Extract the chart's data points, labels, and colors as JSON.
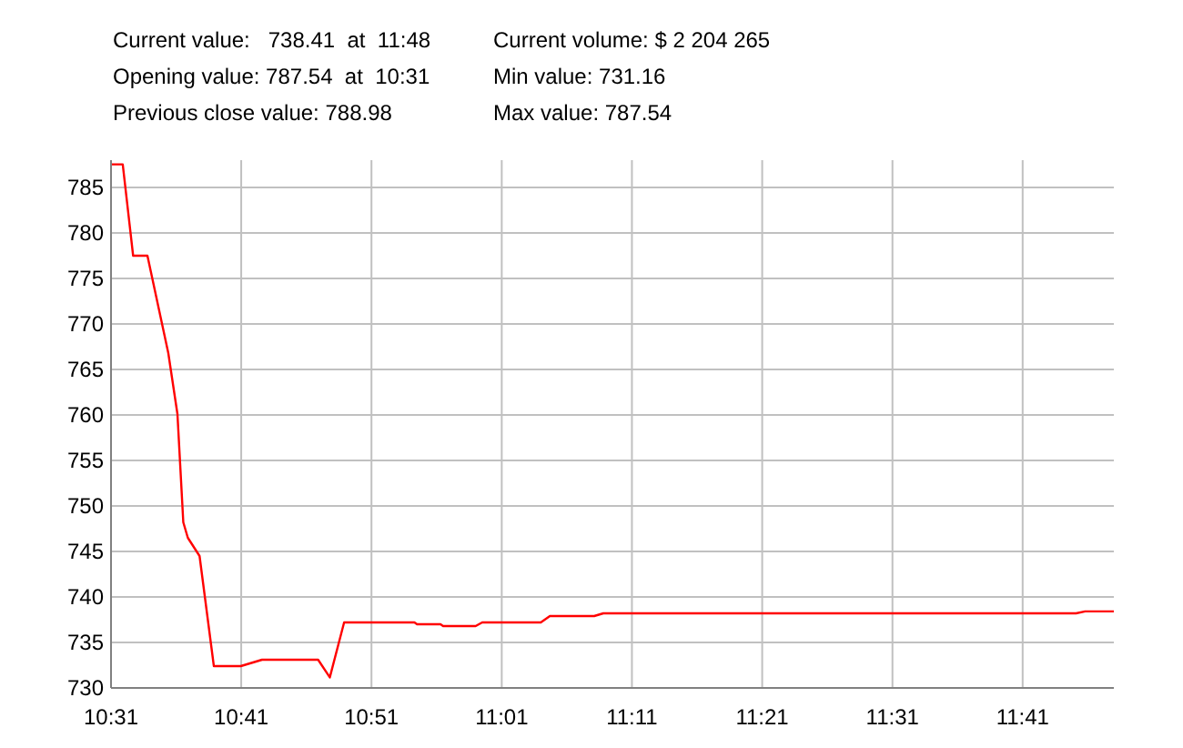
{
  "chart_data": {
    "type": "line",
    "annotations": [
      "Current value:   738.41  at  11:48",
      "Opening value: 787.54  at  10:31",
      "Previous close value: 788.98",
      "Current volume: $ 2 204 265",
      "Min value: 731.16",
      "Max value: 787.54"
    ],
    "x": [
      10.5167,
      10.5317,
      10.545,
      10.5633,
      10.59,
      10.6017,
      10.6092,
      10.615,
      10.63,
      10.6483,
      10.6828,
      10.71,
      10.7817,
      10.7967,
      10.815,
      10.905,
      10.9083,
      10.9383,
      10.9417,
      10.9833,
      10.9917,
      11.0667,
      11.0783,
      11.135,
      11.1467,
      11.7517,
      11.7633,
      11.8
    ],
    "series": [
      {
        "color": "#ff0000",
        "values": [
          787.54,
          787.54,
          777.5,
          777.5,
          766.8,
          760.1,
          748.2,
          746.5,
          744.5,
          732.4,
          732.4,
          733.1,
          733.1,
          731.16,
          737.2,
          737.2,
          737.0,
          737.0,
          736.8,
          736.8,
          737.2,
          737.2,
          737.9,
          737.9,
          738.2,
          738.2,
          738.41,
          738.41
        ]
      }
    ],
    "xlim": [
      10.5167,
      11.8
    ],
    "xticks": [
      {
        "value": 10.5167,
        "label": "10:31"
      },
      {
        "value": 10.6833,
        "label": "10:41"
      },
      {
        "value": 10.85,
        "label": "10:51"
      },
      {
        "value": 11.0167,
        "label": "11:01"
      },
      {
        "value": 11.1833,
        "label": "11:11"
      },
      {
        "value": 11.35,
        "label": "11:21"
      },
      {
        "value": 11.5167,
        "label": "11:31"
      },
      {
        "value": 11.6833,
        "label": "11:41"
      }
    ],
    "ylim": [
      730,
      788
    ],
    "yticks": [
      730,
      735,
      740,
      745,
      750,
      755,
      760,
      765,
      770,
      775,
      780,
      785
    ],
    "grid": true,
    "marker": "none",
    "line_style": "solid"
  }
}
